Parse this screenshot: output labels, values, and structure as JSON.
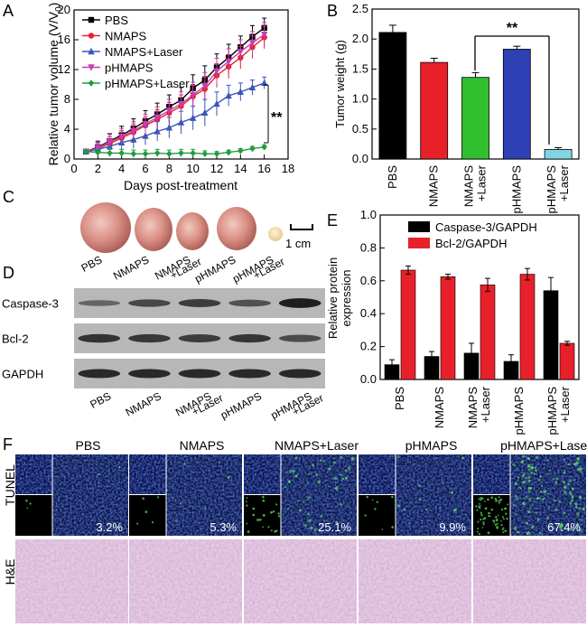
{
  "panel_labels": {
    "a": "A",
    "b": "B",
    "c": "C",
    "d": "D",
    "e": "E",
    "f": "F"
  },
  "groups": [
    "PBS",
    "NMAPS",
    "NMAPS+Laser",
    "pHMAPS",
    "pHMAPS+Laser"
  ],
  "groups_wrapped": [
    [
      "PBS"
    ],
    [
      "NMAPS"
    ],
    [
      "NMAPS",
      "+Laser"
    ],
    [
      "pHMAPS"
    ],
    [
      "pHMAPS",
      "+Laser"
    ]
  ],
  "colors": {
    "PBS": "#000000",
    "NMAPS": "#e8202a",
    "NMAPS+Laser": "#3b55b8",
    "pHMAPS": "#c33fb7",
    "pHMAPS+Laser": "#1e9c3f",
    "bar_nl": "#2fbf2f",
    "bar_ph": "#2f3fb4",
    "bar_phl": "#7fd6e0"
  },
  "chart_data": [
    {
      "id": "A",
      "type": "line",
      "xlabel": "Days post-treatment",
      "ylabel": "Relative tumor volume (V/V",
      "ylabel_sub": "0",
      "ylabel_close": ")",
      "xlim": [
        0,
        18
      ],
      "ylim": [
        0,
        20
      ],
      "xticks": [
        0,
        2,
        4,
        6,
        8,
        10,
        12,
        14,
        16,
        18
      ],
      "yticks": [
        0,
        4,
        8,
        12,
        16,
        20
      ],
      "x": [
        1,
        2,
        3,
        4,
        5,
        6,
        7,
        8,
        9,
        10,
        11,
        12,
        13,
        14,
        15,
        16
      ],
      "series": [
        {
          "name": "PBS",
          "marker": "square",
          "values": [
            1,
            1.6,
            2.4,
            3.2,
            4.1,
            5.1,
            6.0,
            7.0,
            7.9,
            9.5,
            10.6,
            12.3,
            13.6,
            15.0,
            16.4,
            17.6
          ],
          "err": [
            0.3,
            0.8,
            1.0,
            1.2,
            1.3,
            1.4,
            1.5,
            1.6,
            1.7,
            1.8,
            1.9,
            1.8,
            1.8,
            1.5,
            1.5,
            1.3
          ]
        },
        {
          "name": "NMAPS",
          "marker": "circle",
          "values": [
            1,
            1.4,
            2.1,
            2.8,
            3.6,
            4.5,
            5.3,
            6.2,
            7.1,
            8.4,
            9.4,
            11.2,
            12.4,
            13.6,
            15.0,
            16.3
          ],
          "err": [
            0.3,
            0.8,
            0.9,
            1.0,
            1.1,
            1.2,
            1.3,
            1.4,
            1.5,
            1.6,
            1.7,
            1.6,
            1.6,
            1.5,
            1.5,
            1.5
          ]
        },
        {
          "name": "NMAPS+Laser",
          "marker": "triangle",
          "values": [
            1,
            1.3,
            1.7,
            2.2,
            2.6,
            3.1,
            3.7,
            4.2,
            4.9,
            5.5,
            6.2,
            7.4,
            8.5,
            9.0,
            9.6,
            10.2
          ],
          "err": [
            0.3,
            0.9,
            1.0,
            1.1,
            1.2,
            1.2,
            1.3,
            1.4,
            1.5,
            1.6,
            1.8,
            1.6,
            1.4,
            1.2,
            1.0,
            0.8
          ]
        },
        {
          "name": "pHMAPS",
          "marker": "triangle-down",
          "values": [
            1,
            1.5,
            2.3,
            3.0,
            3.8,
            4.7,
            5.6,
            6.5,
            7.4,
            8.6,
            9.8,
            11.8,
            13.1,
            14.4,
            15.6,
            16.7
          ],
          "err": [
            0.3,
            0.8,
            1.0,
            1.1,
            1.2,
            1.3,
            1.4,
            1.5,
            1.6,
            1.7,
            1.8,
            1.7,
            1.7,
            1.6,
            1.5,
            1.6
          ]
        },
        {
          "name": "pHMAPS+Laser",
          "marker": "diamond",
          "values": [
            1,
            0.9,
            0.8,
            0.8,
            0.7,
            0.7,
            0.8,
            0.7,
            0.8,
            0.8,
            0.7,
            0.7,
            0.9,
            1.1,
            1.4,
            1.6
          ],
          "err": [
            0.2,
            0.4,
            0.5,
            0.5,
            0.5,
            0.5,
            0.5,
            0.5,
            0.5,
            0.5,
            0.4,
            0.3,
            0.3,
            0.3,
            0.3,
            0.3
          ]
        }
      ],
      "annotation": "**"
    },
    {
      "id": "B",
      "type": "bar",
      "ylabel": "Tumor weight (g)",
      "ylim": [
        0,
        2.5
      ],
      "yticks": [
        0,
        0.5,
        1.0,
        1.5,
        2.0,
        2.5
      ],
      "yticklabels": [
        "0.0",
        "0.5",
        "1.0",
        "1.5",
        "2.0",
        "2.5"
      ],
      "categories": [
        "PBS",
        "NMAPS",
        "NMAPS+Laser",
        "pHMAPS",
        "pHMAPS+Laser"
      ],
      "values": [
        2.11,
        1.61,
        1.36,
        1.83,
        0.16
      ],
      "err": [
        0.12,
        0.07,
        0.08,
        0.05,
        0.03
      ],
      "annotation": "**"
    },
    {
      "id": "E",
      "type": "bar",
      "ylabel_line1": "Relative protein",
      "ylabel_line2": "expression",
      "ylim": [
        0,
        1.0
      ],
      "yticks": [
        0,
        0.2,
        0.4,
        0.6,
        0.8,
        1.0
      ],
      "yticklabels": [
        "0.0",
        "0.2",
        "0.4",
        "0.6",
        "0.8",
        "1.0"
      ],
      "categories": [
        "PBS",
        "NMAPS",
        "NMAPS+Laser",
        "pHMAPS",
        "pHMAPS+Laser"
      ],
      "series": [
        {
          "name": "Caspase-3/GAPDH",
          "values": [
            0.09,
            0.14,
            0.16,
            0.11,
            0.54
          ],
          "err": [
            0.03,
            0.03,
            0.06,
            0.04,
            0.08
          ]
        },
        {
          "name": "Bcl-2/GAPDH",
          "values": [
            0.665,
            0.625,
            0.575,
            0.64,
            0.22
          ],
          "err": [
            0.025,
            0.015,
            0.04,
            0.035,
            0.012
          ]
        }
      ]
    }
  ],
  "panel_c": {
    "scale_label": "1 cm"
  },
  "panel_d": {
    "rows": [
      "Caspase-3",
      "Bcl-2",
      "GAPDH"
    ]
  },
  "panel_f": {
    "row_tunel": "TUNEL",
    "row_he": "H&E",
    "columns": [
      "PBS",
      "NMAPS",
      "NMAPS+Laser",
      "pHMAPS",
      "pHMAPS+Laser"
    ],
    "percentages": [
      "3.2%",
      "5.3%",
      "25.1%",
      "9.9%",
      "67.4%"
    ],
    "green_level": [
      0.02,
      0.04,
      0.25,
      0.08,
      0.7
    ]
  }
}
